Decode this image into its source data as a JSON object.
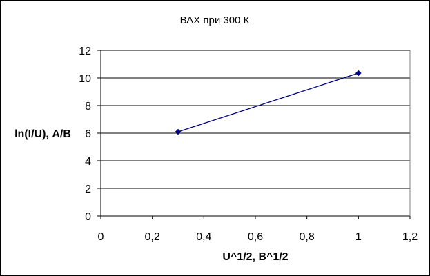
{
  "chart_data": {
    "type": "scatter",
    "title": "ВАХ при 300 К",
    "xlabel": "U^1/2, В^1/2",
    "ylabel": "ln(I/U), А/В",
    "xlim": [
      0,
      1.2
    ],
    "ylim": [
      0,
      12
    ],
    "x_ticks": [
      "0",
      "0,2",
      "0,4",
      "0,6",
      "0,8",
      "1",
      "1,2"
    ],
    "y_ticks": [
      "0",
      "2",
      "4",
      "6",
      "8",
      "10",
      "12"
    ],
    "grid": "horizontal",
    "legend": "none",
    "series": [
      {
        "x": [
          0.3,
          1.0
        ],
        "y": [
          6.1,
          10.35
        ],
        "color": "#000080",
        "line": true,
        "marker": "diamond"
      }
    ]
  }
}
